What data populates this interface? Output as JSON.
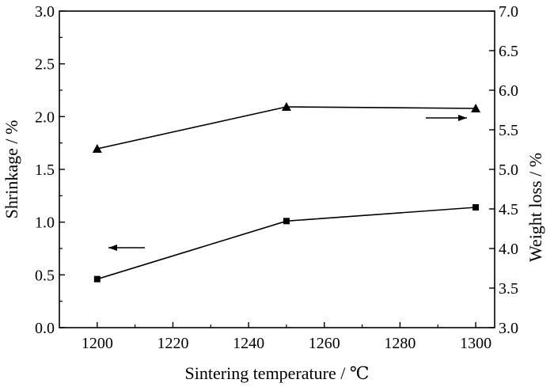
{
  "chart_data": {
    "type": "line",
    "xlabel": "Sintering temperature / ℃",
    "ylabel_left": "Shrinkage / %",
    "ylabel_right": "Weight loss / %",
    "xlim": [
      1190,
      1305
    ],
    "ylim_left": [
      0.0,
      3.0
    ],
    "ylim_right": [
      3.0,
      7.0
    ],
    "x_ticks": [
      "1200",
      "1220",
      "1240",
      "1260",
      "1280",
      "1300"
    ],
    "y_left_ticks": [
      "0.0",
      "0.5",
      "1.0",
      "1.5",
      "2.0",
      "2.5",
      "3.0"
    ],
    "y_right_ticks": [
      "3.0",
      "3.5",
      "4.0",
      "4.5",
      "5.0",
      "5.5",
      "6.0",
      "6.5",
      "7.0"
    ],
    "grid": false,
    "legend": "none",
    "series": [
      {
        "axis": "left",
        "marker": "square",
        "color": "#000000",
        "x": [
          1200,
          1250,
          1300
        ],
        "y": [
          0.46,
          1.01,
          1.14
        ]
      },
      {
        "axis": "right",
        "marker": "triangle",
        "color": "#000000",
        "x": [
          1200,
          1250,
          1300
        ],
        "y": [
          5.26,
          5.79,
          5.77
        ]
      }
    ],
    "annotations": [
      {
        "type": "arrow",
        "direction": "left",
        "points_to_axis": "left"
      },
      {
        "type": "arrow",
        "direction": "right",
        "points_to_axis": "right"
      }
    ]
  }
}
